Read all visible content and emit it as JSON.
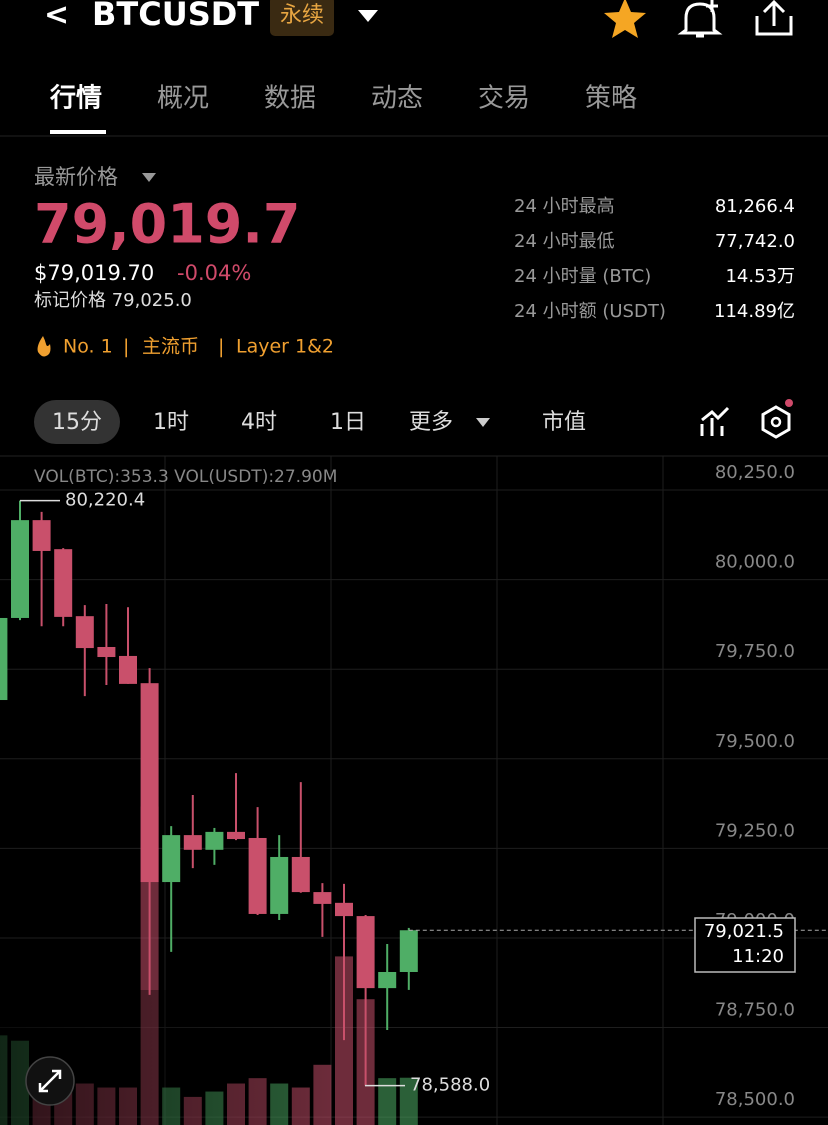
{
  "header": {
    "back": "<",
    "symbol": "BTCUSDT",
    "badge": "永续"
  },
  "tabs": [
    "行情",
    "概况",
    "数据",
    "动态",
    "交易",
    "策略"
  ],
  "price": {
    "label": "最新价格",
    "last": "79,019.7",
    "usd": "$79,019.70",
    "change": "-0.04%",
    "mark": "标记价格 79,025.0"
  },
  "tags": [
    "No. 1",
    "|",
    "主流币",
    "|",
    "Layer 1&2"
  ],
  "stats": [
    [
      "24 小时最高",
      "81,266.4"
    ],
    [
      "24 小时最低",
      "77,742.0"
    ],
    [
      "24 小时量 (BTC)",
      "14.53万"
    ],
    [
      "24 小时额 (USDT)",
      "114.89亿"
    ]
  ],
  "intervals": [
    "15分",
    "1时",
    "4时",
    "1日",
    "更多",
    "市值"
  ],
  "chart_data": {
    "type": "candlestick",
    "volume_text": "VOL(BTC):353.3 VOL(USDT):27.90M",
    "ylim": [
      78478,
      80345
    ],
    "yticks": [
      {
        "value": 80250,
        "label": "80,250.0"
      },
      {
        "value": 80000,
        "label": "80,000.0"
      },
      {
        "value": 79750,
        "label": "79,750.0"
      },
      {
        "value": 79500,
        "label": "79,500.0"
      },
      {
        "value": 79250,
        "label": "79,250.0"
      },
      {
        "value": 79000,
        "label": "79,000.0"
      },
      {
        "value": 78750,
        "label": "78,750.0"
      },
      {
        "value": 78500,
        "label": "78,500.0"
      }
    ],
    "up_color": "#4fae66",
    "down_color": "#c9506b",
    "open": [
      79664,
      79893,
      80166,
      80085,
      79898,
      79812,
      79787,
      79711,
      79156,
      79287,
      79246,
      79296,
      79279,
      79067,
      79226,
      79128,
      79098,
      79061,
      78860,
      78905
    ],
    "high": [
      79930,
      80220.4,
      80189,
      80088,
      79929,
      79932,
      79923,
      79753,
      79312,
      79399,
      79307,
      79460,
      79365,
      79287,
      79435,
      79153,
      79151,
      79064,
      78983,
      79028
    ],
    "low": [
      79600,
      79887,
      79870,
      79870,
      79675,
      79706,
      79709,
      78841,
      78961,
      79195,
      79204,
      79273,
      79064,
      79050,
      79126,
      79003,
      78715,
      78588,
      78743,
      78855
    ],
    "close": [
      79893,
      80166,
      80080,
      79896,
      79809,
      79784,
      79709,
      79156,
      79287,
      79246,
      79296,
      79276,
      79067,
      79226,
      79128,
      79095,
      79061,
      78860,
      78905,
      79021.5
    ],
    "volume": {
      "ylim": [
        0,
        5000
      ],
      "values": [
        670,
        630,
        420,
        350,
        310,
        280,
        280,
        2380,
        280,
        210,
        250,
        310,
        350,
        310,
        280,
        450,
        1260,
        940,
        350,
        353.3
      ]
    },
    "high_marker": {
      "value": 80220.4,
      "label": "80,220.4"
    },
    "low_marker": {
      "value": 78588,
      "label": "78,588.0"
    },
    "last_price": {
      "value": 79021.5,
      "label": "79,021.5"
    },
    "last_time": "11:20"
  }
}
